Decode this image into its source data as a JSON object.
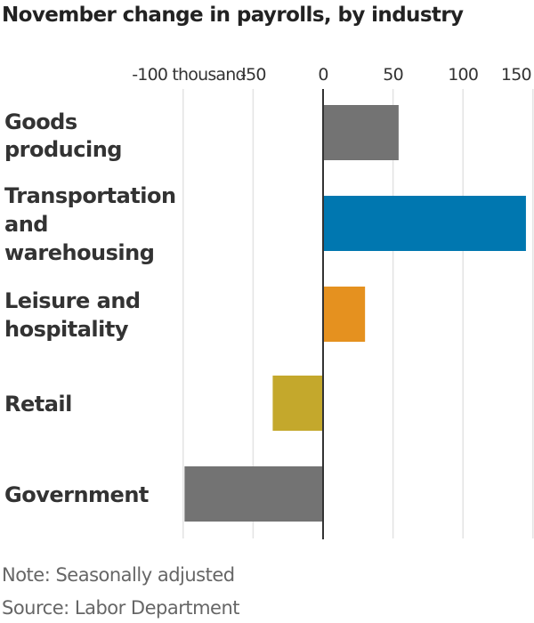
{
  "chart_data": {
    "type": "bar",
    "orientation": "horizontal",
    "title": "November change in payrolls, by industry",
    "categories": [
      [
        "Goods",
        "producing"
      ],
      [
        "Transportation",
        "and",
        "warehousing"
      ],
      [
        "Leisure and",
        "hospitality"
      ],
      [
        "Retail"
      ],
      [
        "Government"
      ]
    ],
    "values": [
      54,
      145,
      30,
      -36,
      -99
    ],
    "colors": [
      "#737373",
      "#0077b0",
      "#e5911f",
      "#c4a82c",
      "#737373"
    ],
    "xlim": [
      -100,
      150
    ],
    "ticks": [
      -100,
      -50,
      0,
      50,
      100,
      150
    ],
    "tick_labels": [
      "-100 thousand",
      "-50",
      "0",
      "50",
      "100",
      "150"
    ],
    "grid": true,
    "legend": "none"
  },
  "footer": {
    "note": "Note: Seasonally adjusted",
    "source": "Source: Labor Department"
  }
}
